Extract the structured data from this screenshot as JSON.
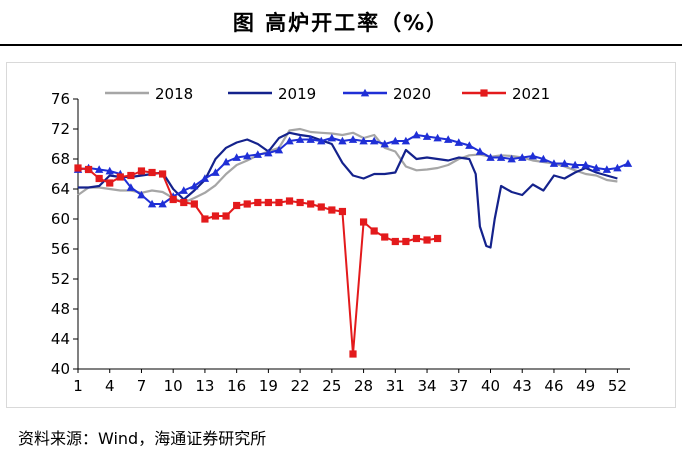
{
  "header": {
    "title": "图  高炉开工率（%）"
  },
  "footer": {
    "source": "资料来源：Wind，海通证券研究所"
  },
  "chart_data": {
    "type": "line",
    "title": "图  高炉开工率（%）",
    "xlabel": "",
    "ylabel": "",
    "xlim": [
      1,
      53
    ],
    "ylim": [
      40,
      76
    ],
    "x_ticks": [
      1,
      4,
      7,
      10,
      13,
      16,
      19,
      22,
      25,
      28,
      31,
      34,
      37,
      40,
      43,
      46,
      49,
      52
    ],
    "y_ticks": [
      40,
      44,
      48,
      52,
      56,
      60,
      64,
      68,
      72,
      76
    ],
    "grid": false,
    "legend_position": "top",
    "series": [
      {
        "name": "2018",
        "color": "#a6a6a6",
        "marker": "none",
        "x": [
          1,
          2,
          3,
          4,
          5,
          6,
          7,
          8,
          9,
          10,
          11,
          12,
          13,
          14,
          15,
          16,
          17,
          18,
          19,
          20,
          21,
          22,
          23,
          24,
          25,
          26,
          27,
          28,
          29,
          30,
          31,
          32,
          33,
          34,
          35,
          36,
          37,
          38,
          39,
          40,
          41,
          42,
          43,
          44,
          45,
          46,
          47,
          48,
          49,
          50,
          51,
          52
        ],
        "y": [
          63.2,
          64.2,
          64.2,
          64.0,
          63.8,
          63.8,
          63.5,
          63.8,
          63.6,
          62.8,
          62.2,
          62.8,
          63.5,
          64.5,
          66.0,
          67.2,
          67.8,
          68.5,
          69.0,
          69.5,
          71.8,
          72.0,
          71.6,
          71.5,
          71.4,
          71.2,
          71.5,
          70.8,
          71.2,
          69.5,
          69.0,
          67.0,
          66.5,
          66.6,
          66.8,
          67.2,
          68.0,
          68.5,
          68.6,
          68.3,
          68.5,
          68.4,
          68.2,
          67.8,
          67.6,
          67.4,
          67.0,
          66.5,
          66.0,
          65.8,
          65.2,
          65.0
        ]
      },
      {
        "name": "2019",
        "color": "#14228c",
        "marker": "none",
        "x": [
          1,
          2,
          3,
          4,
          5,
          6,
          7,
          8,
          9,
          10,
          11,
          12,
          13,
          14,
          15,
          16,
          17,
          18,
          19,
          20,
          21,
          22,
          23,
          24,
          25,
          26,
          27,
          28,
          29,
          30,
          31,
          32,
          33,
          34,
          35,
          36,
          37,
          38,
          38.6,
          39,
          39.6,
          40,
          40.4,
          41,
          42,
          43,
          44,
          45,
          46,
          47,
          48,
          49,
          50,
          51,
          52
        ],
        "y": [
          64.2,
          64.2,
          64.4,
          65.8,
          65.6,
          65.6,
          65.8,
          66.0,
          66.2,
          64.0,
          62.6,
          63.8,
          65.2,
          68.0,
          69.5,
          70.2,
          70.6,
          70.0,
          69.0,
          70.8,
          71.5,
          71.2,
          71.0,
          70.5,
          70.0,
          67.5,
          65.8,
          65.4,
          66.0,
          66.0,
          66.2,
          69.2,
          68.0,
          68.2,
          68.0,
          67.8,
          68.2,
          68.0,
          66.0,
          59.0,
          56.4,
          56.2,
          60.0,
          64.4,
          63.6,
          63.2,
          64.6,
          63.8,
          65.8,
          65.4,
          66.2,
          66.8,
          66.2,
          65.8,
          65.4
        ]
      },
      {
        "name": "2020",
        "color": "#1f2fd6",
        "marker": "triangle",
        "x": [
          1,
          2,
          3,
          4,
          5,
          6,
          7,
          8,
          9,
          10,
          11,
          12,
          13,
          14,
          15,
          16,
          17,
          18,
          19,
          20,
          21,
          22,
          23,
          24,
          25,
          26,
          27,
          28,
          29,
          30,
          31,
          32,
          33,
          34,
          35,
          36,
          37,
          38,
          39,
          40,
          41,
          42,
          43,
          44,
          45,
          46,
          47,
          48,
          49,
          50,
          51,
          52,
          53
        ],
        "y": [
          66.6,
          66.8,
          66.6,
          66.4,
          66.0,
          64.2,
          63.2,
          62.0,
          62.0,
          63.0,
          63.8,
          64.4,
          65.4,
          66.2,
          67.6,
          68.2,
          68.4,
          68.6,
          68.8,
          69.2,
          70.4,
          70.6,
          70.6,
          70.4,
          70.8,
          70.4,
          70.6,
          70.4,
          70.4,
          70.0,
          70.4,
          70.4,
          71.2,
          71.0,
          70.8,
          70.6,
          70.2,
          69.8,
          69.0,
          68.2,
          68.2,
          68.0,
          68.2,
          68.4,
          68.0,
          67.4,
          67.4,
          67.2,
          67.2,
          66.8,
          66.6,
          66.8,
          67.4
        ]
      },
      {
        "name": "2021",
        "color": "#e31a1c",
        "marker": "square",
        "x": [
          1,
          2,
          3,
          4,
          5,
          6,
          7,
          8,
          9,
          10,
          11,
          12,
          13,
          14,
          15,
          16,
          17,
          18,
          19,
          20,
          21,
          22,
          23,
          24,
          25,
          26,
          27,
          28,
          29,
          30,
          31,
          32,
          33,
          34,
          35
        ],
        "y": [
          66.8,
          66.6,
          65.4,
          64.8,
          65.6,
          65.8,
          66.4,
          66.2,
          66.0,
          62.6,
          62.2,
          62.0,
          60.0,
          60.4,
          60.4,
          61.8,
          62.0,
          62.2,
          62.2,
          62.2,
          62.4,
          62.2,
          62.0,
          61.6,
          61.2,
          61.0,
          42.0,
          59.6,
          58.4,
          57.6,
          57.0,
          57.0,
          57.4,
          57.2,
          57.4
        ]
      }
    ]
  }
}
